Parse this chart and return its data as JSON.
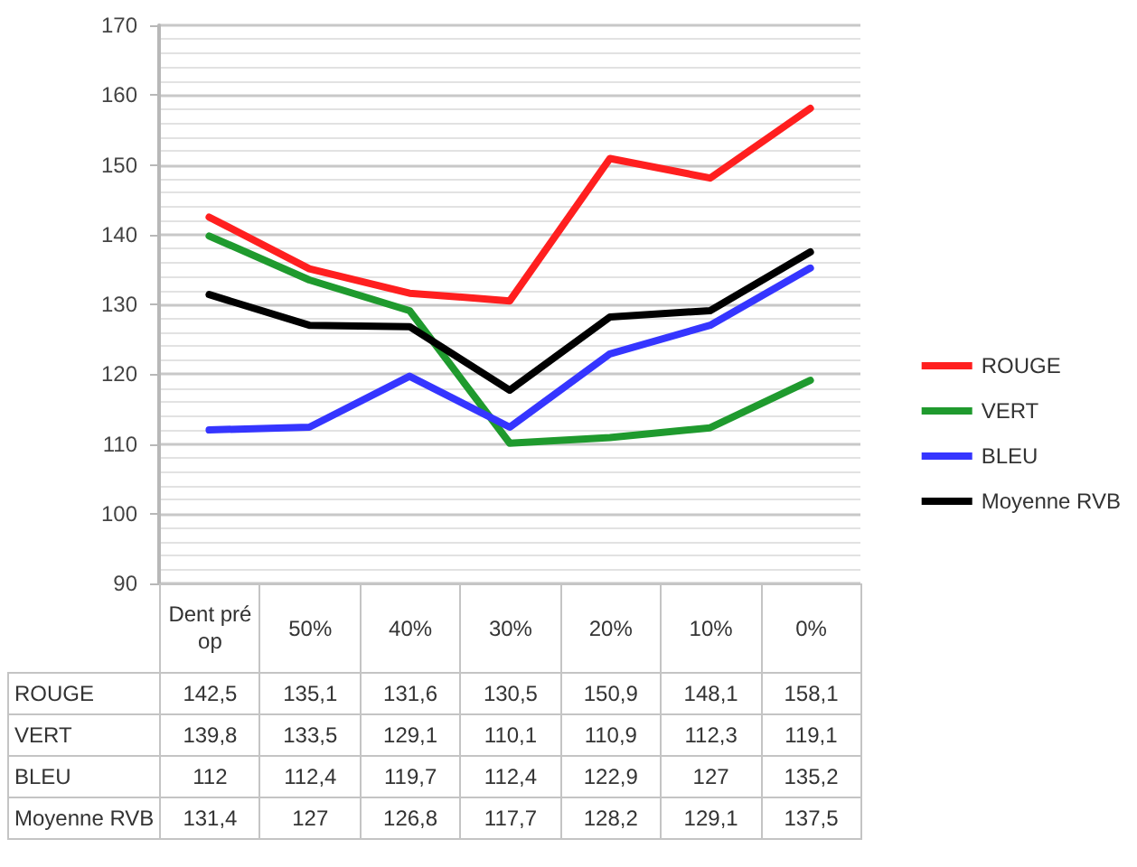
{
  "chart_data": {
    "type": "line",
    "categories": [
      "Dent pré op",
      "50%",
      "40%",
      "30%",
      "20%",
      "10%",
      "0%"
    ],
    "series": [
      {
        "name": "ROUGE",
        "color": "#ff1f1f",
        "values": [
          142.5,
          135.1,
          131.6,
          130.5,
          150.9,
          148.1,
          158.1
        ],
        "value_labels": [
          "142,5",
          "135,1",
          "131,6",
          "130,5",
          "150,9",
          "148,1",
          "158,1"
        ]
      },
      {
        "name": "VERT",
        "color": "#1f9a2e",
        "values": [
          139.8,
          133.5,
          129.1,
          110.1,
          110.9,
          112.3,
          119.1
        ],
        "value_labels": [
          "139,8",
          "133,5",
          "129,1",
          "110,1",
          "110,9",
          "112,3",
          "119,1"
        ]
      },
      {
        "name": "BLEU",
        "color": "#3535ff",
        "values": [
          112,
          112.4,
          119.7,
          112.4,
          122.9,
          127,
          135.2
        ],
        "value_labels": [
          "112",
          "112,4",
          "119,7",
          "112,4",
          "122,9",
          "127",
          "135,2"
        ]
      },
      {
        "name": "Moyenne RVB",
        "color": "#000000",
        "values": [
          131.4,
          127,
          126.8,
          117.7,
          128.2,
          129.1,
          137.5
        ],
        "value_labels": [
          "131,4",
          "127",
          "126,8",
          "117,7",
          "128,2",
          "129,1",
          "137,5"
        ]
      }
    ],
    "ylim": [
      90,
      170
    ],
    "yticks": [
      90,
      100,
      110,
      120,
      130,
      140,
      150,
      160,
      170
    ],
    "grid": "y",
    "legend": "right",
    "marker": "none",
    "line_style": "solid"
  }
}
